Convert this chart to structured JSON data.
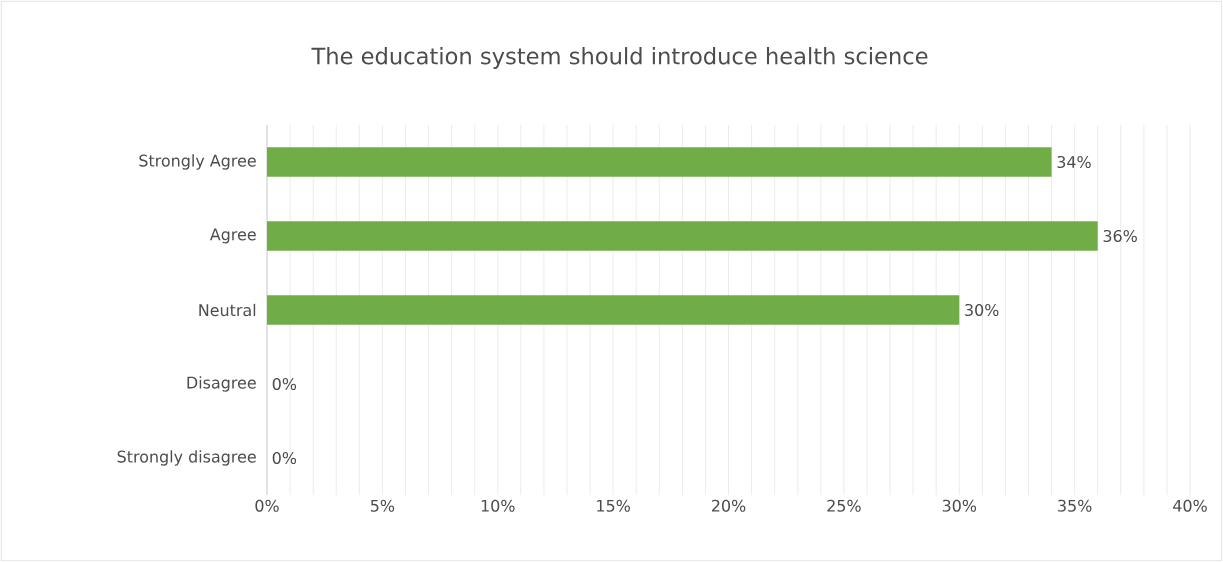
{
  "chart_data": {
    "type": "bar",
    "orientation": "horizontal",
    "title": "The education system should introduce health science",
    "categories": [
      "Strongly Agree",
      "Agree",
      "Neutral",
      "Disagree",
      "Strongly disagree"
    ],
    "values": [
      34,
      36,
      30,
      0,
      0
    ],
    "value_labels": [
      "34%",
      "36%",
      "30%",
      "0%",
      "0%"
    ],
    "color": "#70ad47",
    "xlim": [
      0,
      40
    ],
    "xticks": [
      {
        "value": 0,
        "label": "0%"
      },
      {
        "value": 5,
        "label": "5%"
      },
      {
        "value": 10,
        "label": "10%"
      },
      {
        "value": 15,
        "label": "15%"
      },
      {
        "value": 20,
        "label": "20%"
      },
      {
        "value": 25,
        "label": "25%"
      },
      {
        "value": 30,
        "label": "30%"
      },
      {
        "value": 35,
        "label": "35%"
      },
      {
        "value": 40,
        "label": "40%"
      }
    ],
    "grid": "x"
  }
}
